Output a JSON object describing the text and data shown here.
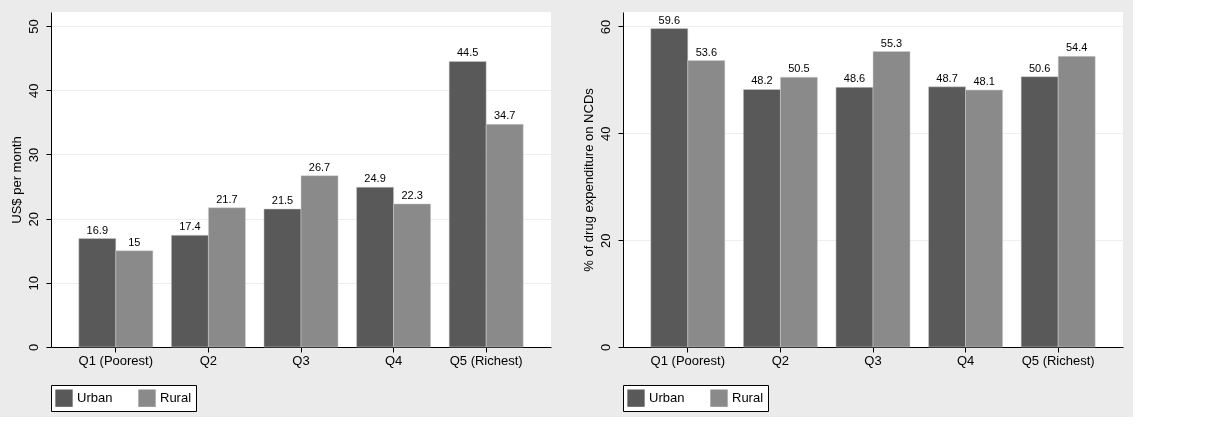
{
  "chart_data": [
    {
      "type": "bar",
      "categories": [
        "Q1 (Poorest)",
        "Q2",
        "Q3",
        "Q4",
        "Q5 (Richest)"
      ],
      "ylabel": "US$ per month",
      "ylim": [
        0,
        52.2
      ],
      "yticks": [
        0,
        10,
        20,
        30,
        40,
        50
      ],
      "grid": "y",
      "legend": "bottom",
      "data_labels": true,
      "series": [
        {
          "name": "Urban",
          "color": "#595959",
          "values": [
            16.9,
            17.4,
            21.5,
            24.9,
            44.5
          ]
        },
        {
          "name": "Rural",
          "color": "#8a8a8a",
          "values": [
            15,
            21.7,
            26.7,
            22.3,
            34.7
          ]
        }
      ]
    },
    {
      "type": "bar",
      "categories": [
        "Q1 (Poorest)",
        "Q2",
        "Q3",
        "Q4",
        "Q5 (Richest)"
      ],
      "ylabel": "% of drug expenditure on NCDs",
      "ylim": [
        0,
        62.7
      ],
      "yticks": [
        0,
        20,
        40,
        60
      ],
      "grid": "y",
      "legend": "bottom",
      "data_labels": true,
      "series": [
        {
          "name": "Urban",
          "color": "#595959",
          "values": [
            59.6,
            48.2,
            48.6,
            48.7,
            50.6
          ]
        },
        {
          "name": "Rural",
          "color": "#8a8a8a",
          "values": [
            53.6,
            50.5,
            55.3,
            48.1,
            54.4
          ]
        }
      ]
    }
  ]
}
